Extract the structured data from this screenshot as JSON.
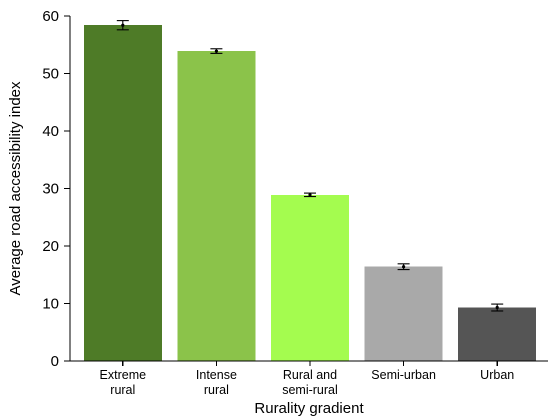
{
  "chart_data": {
    "type": "bar",
    "title": "",
    "xlabel": "Rurality gradient",
    "ylabel": "Average road accessibility index",
    "ylim": [
      0,
      60
    ],
    "yticks": [
      0,
      10,
      20,
      30,
      40,
      50,
      60
    ],
    "grid": false,
    "categories": [
      [
        "Extreme",
        "rural"
      ],
      [
        "Intense",
        "rural"
      ],
      [
        "Rural and",
        "semi-rural"
      ],
      [
        "Semi-urban"
      ],
      [
        "Urban"
      ]
    ],
    "values": [
      58.4,
      53.9,
      28.9,
      16.4,
      9.3
    ],
    "errors": [
      0.8,
      0.4,
      0.3,
      0.5,
      0.6
    ],
    "colors": [
      "#4e7b27",
      "#8bc34a",
      "#a4fc4f",
      "#a9a9a9",
      "#555555"
    ]
  }
}
